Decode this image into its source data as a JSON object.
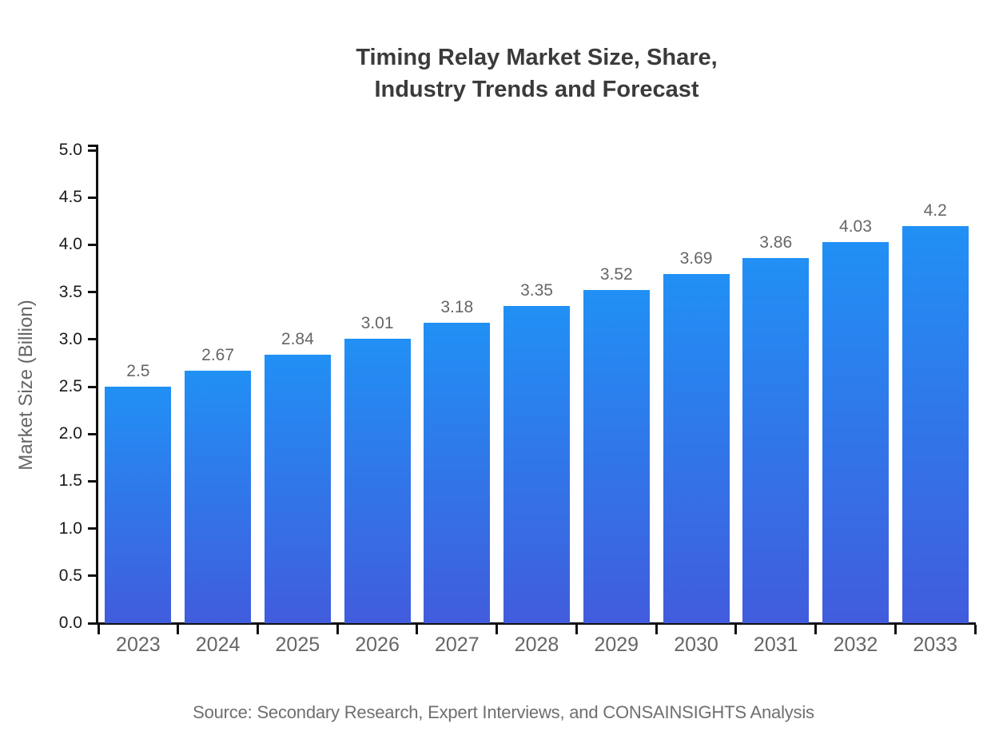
{
  "chart_data": {
    "type": "bar",
    "title_line1": "Timing Relay Market Size, Share,",
    "title_line2": "Industry Trends and Forecast",
    "categories": [
      "2023",
      "2024",
      "2025",
      "2026",
      "2027",
      "2028",
      "2029",
      "2030",
      "2031",
      "2032",
      "2033"
    ],
    "values": [
      2.5,
      2.67,
      2.84,
      3.01,
      3.18,
      3.35,
      3.52,
      3.69,
      3.86,
      4.03,
      4.2
    ],
    "value_labels": [
      "2.5",
      "2.67",
      "2.84",
      "3.01",
      "3.18",
      "3.35",
      "3.52",
      "3.69",
      "3.86",
      "4.03",
      "4.2"
    ],
    "xlabel": "",
    "ylabel": "Market Size (Billion)",
    "ylim": [
      0,
      5
    ],
    "ytick_labels": [
      "0.0",
      "0.5",
      "1.0",
      "1.5",
      "2.0",
      "2.5",
      "3.0",
      "3.5",
      "4.0",
      "4.5",
      "5.0"
    ],
    "grid": false,
    "legend": "none",
    "source": "Source: Secondary Research, Expert Interviews, and CONSAINSIGHTS Analysis",
    "colors": {
      "bar_gradient_top": "#2190f5",
      "bar_gradient_bottom": "#415cdd",
      "axis": "#111111",
      "title_text": "#3b3b3b",
      "ytick_label_text": "#1a1a1a",
      "category_label_text": "#666666",
      "value_label_text": "#666666",
      "axis_title_text": "#666666",
      "source_text": "#6f6f6f"
    }
  }
}
